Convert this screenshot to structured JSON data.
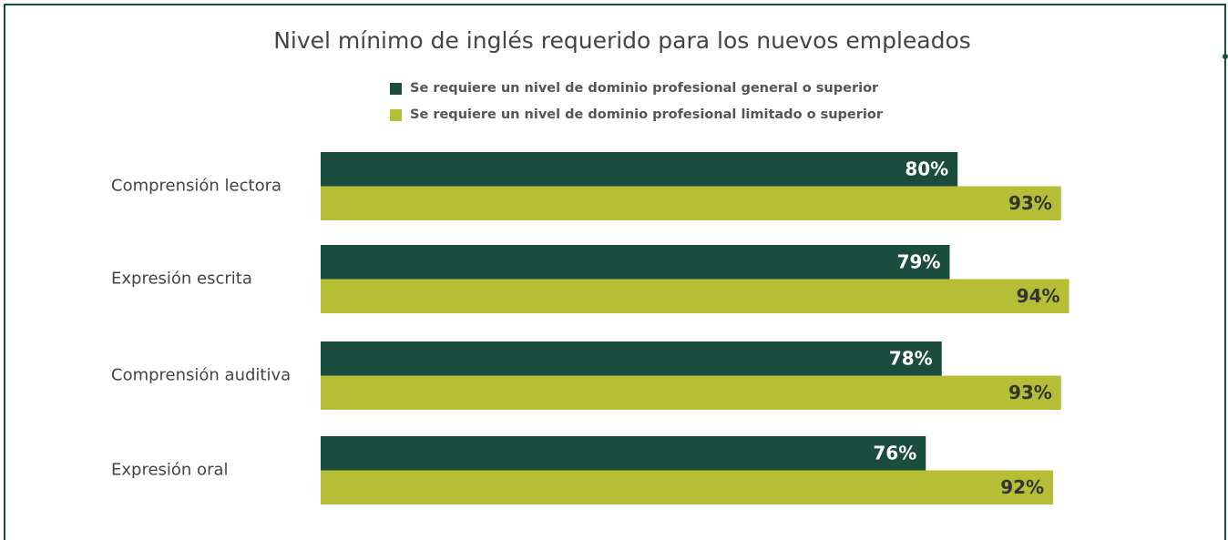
{
  "chart_data": {
    "type": "bar",
    "orientation": "horizontal",
    "title": "Nivel mínimo de inglés requerido para los nuevos empleados",
    "categories": [
      "Comprensión lectora",
      "Expresión escrita",
      "Comprensión auditiva",
      "Expresión oral"
    ],
    "series": [
      {
        "name": "Se requiere un nivel de dominio profesional general o superior",
        "color": "#1b4d3e",
        "values": [
          80,
          79,
          78,
          76
        ],
        "value_labels": [
          "80%",
          "79%",
          "78%",
          "76%"
        ]
      },
      {
        "name": "Se requiere un nivel de dominio profesional limitado o superior",
        "color": "#b5be34",
        "values": [
          93,
          94,
          93,
          92
        ],
        "value_labels": [
          "93%",
          "94%",
          "93%",
          "92%"
        ]
      }
    ]
  }
}
